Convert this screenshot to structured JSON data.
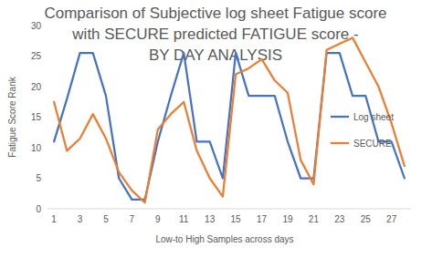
{
  "chart_data": {
    "type": "line",
    "title": "Comparison of Subjective log sheet Fatigue score\nwith SECURE predicted FATIGUE score -\nBY DAY ANALYSIS",
    "x_label": "Low-to High Samples across days",
    "y_label": "Fatigue Score Rank",
    "categories": [
      1,
      null,
      3,
      null,
      5,
      null,
      7,
      null,
      9,
      null,
      11,
      null,
      13,
      null,
      15,
      null,
      17,
      null,
      19,
      null,
      21,
      null,
      23,
      null,
      25,
      null,
      27,
      null
    ],
    "series": [
      {
        "name": "Log sheet",
        "color": "#4472c4",
        "values": [
          11,
          18,
          25.5,
          25.5,
          18.5,
          5,
          1.5,
          1.5,
          11,
          18.5,
          25.5,
          11,
          11,
          5,
          25.5,
          18.5,
          18.5,
          18.5,
          11,
          5,
          5,
          25.5,
          25.5,
          18.5,
          18.5,
          11,
          11,
          5
        ]
      },
      {
        "name": "SECURE",
        "color": "#ed7d31",
        "values": [
          17.5,
          9.5,
          11.5,
          15.5,
          11.5,
          6,
          3,
          1,
          13,
          15.5,
          17.5,
          9.5,
          5,
          2,
          22,
          23,
          24.5,
          21,
          19,
          8,
          4,
          26,
          27,
          28,
          24,
          20,
          14,
          7
        ]
      }
    ],
    "ylim": [
      0,
      30
    ],
    "yticks": [
      0,
      5,
      10,
      15,
      20,
      25,
      30
    ],
    "grid": false,
    "legend": "right"
  }
}
